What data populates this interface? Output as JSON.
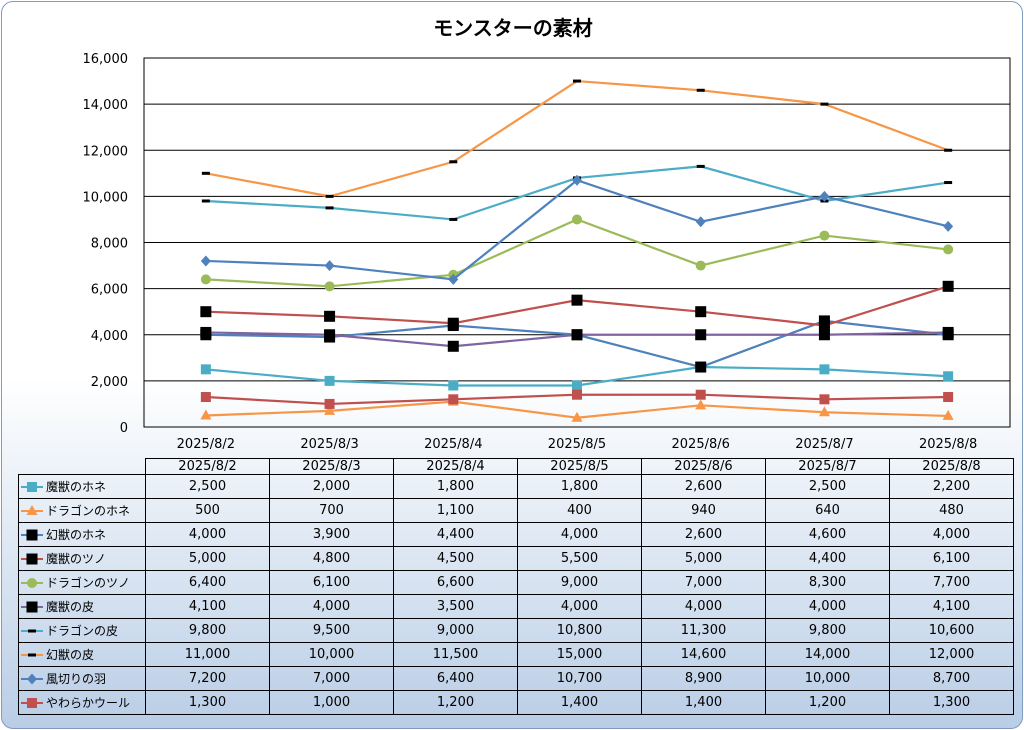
{
  "chart_data": {
    "type": "line",
    "title": "モンスターの素材",
    "categories": [
      "2025/8/2",
      "2025/8/3",
      "2025/8/4",
      "2025/8/5",
      "2025/8/6",
      "2025/8/7",
      "2025/8/8"
    ],
    "ylim": [
      0,
      16000
    ],
    "yticks": [
      "0",
      "2,000",
      "4,000",
      "6,000",
      "8,000",
      "10,000",
      "12,000",
      "14,000",
      "16,000"
    ],
    "grid": true,
    "legend": "data-table",
    "series": [
      {
        "name": "魔獣のホネ",
        "values": [
          2500,
          2000,
          1800,
          1800,
          2600,
          2500,
          2200
        ],
        "labels": [
          "2,500",
          "2,000",
          "1,800",
          "1,800",
          "2,600",
          "2,500",
          "2,200"
        ],
        "color": "#4bacc6",
        "marker": "square"
      },
      {
        "name": "ドラゴンのホネ",
        "values": [
          500,
          700,
          1100,
          400,
          940,
          640,
          480
        ],
        "labels": [
          "500",
          "700",
          "1,100",
          "400",
          "940",
          "640",
          "480"
        ],
        "color": "#f79646",
        "marker": "triangle"
      },
      {
        "name": "幻獣のホネ",
        "values": [
          4000,
          3900,
          4400,
          4000,
          2600,
          4600,
          4000
        ],
        "labels": [
          "4,000",
          "3,900",
          "4,400",
          "4,000",
          "2,600",
          "4,600",
          "4,000"
        ],
        "color": "#4f81bd",
        "marker": "blacksquare"
      },
      {
        "name": "魔獣のツノ",
        "values": [
          5000,
          4800,
          4500,
          5500,
          5000,
          4400,
          6100
        ],
        "labels": [
          "5,000",
          "4,800",
          "4,500",
          "5,500",
          "5,000",
          "4,400",
          "6,100"
        ],
        "color": "#c0504d",
        "marker": "blacksquare"
      },
      {
        "name": "ドラゴンのツノ",
        "values": [
          6400,
          6100,
          6600,
          9000,
          7000,
          8300,
          7700
        ],
        "labels": [
          "6,400",
          "6,100",
          "6,600",
          "9,000",
          "7,000",
          "8,300",
          "7,700"
        ],
        "color": "#9bbb59",
        "marker": "circle"
      },
      {
        "name": "魔獣の皮",
        "values": [
          4100,
          4000,
          3500,
          4000,
          4000,
          4000,
          4100
        ],
        "labels": [
          "4,100",
          "4,000",
          "3,500",
          "4,000",
          "4,000",
          "4,000",
          "4,100"
        ],
        "color": "#8064a2",
        "marker": "blacksquare"
      },
      {
        "name": "ドラゴンの皮",
        "values": [
          9800,
          9500,
          9000,
          10800,
          11300,
          9800,
          10600
        ],
        "labels": [
          "9,800",
          "9,500",
          "9,000",
          "10,800",
          "11,300",
          "9,800",
          "10,600"
        ],
        "color": "#4bacc6",
        "marker": "dash"
      },
      {
        "name": "幻獣の皮",
        "values": [
          11000,
          10000,
          11500,
          15000,
          14600,
          14000,
          12000
        ],
        "labels": [
          "11,000",
          "10,000",
          "11,500",
          "15,000",
          "14,600",
          "14,000",
          "12,000"
        ],
        "color": "#f79646",
        "marker": "dash"
      },
      {
        "name": "風切りの羽",
        "values": [
          7200,
          7000,
          6400,
          10700,
          8900,
          10000,
          8700
        ],
        "labels": [
          "7,200",
          "7,000",
          "6,400",
          "10,700",
          "8,900",
          "10,000",
          "8,700"
        ],
        "color": "#4f81bd",
        "marker": "diamond"
      },
      {
        "name": "やわらかウール",
        "values": [
          1300,
          1000,
          1200,
          1400,
          1400,
          1200,
          1300
        ],
        "labels": [
          "1,300",
          "1,000",
          "1,200",
          "1,400",
          "1,400",
          "1,200",
          "1,300"
        ],
        "color": "#c0504d",
        "marker": "square"
      }
    ]
  }
}
